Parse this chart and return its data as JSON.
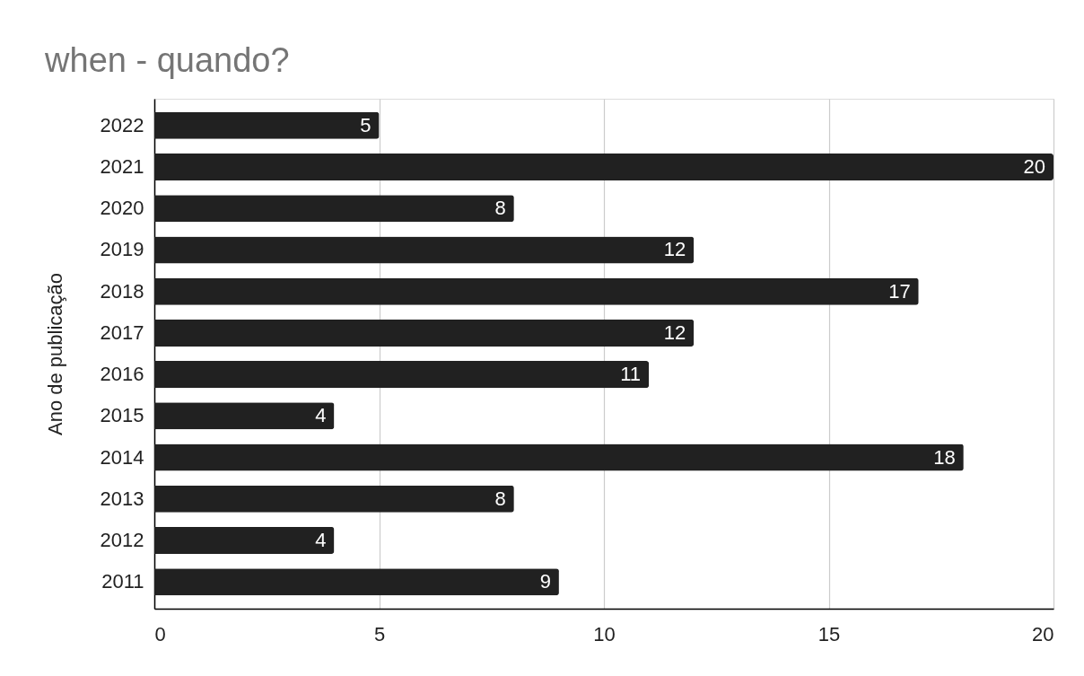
{
  "chart_data": {
    "type": "bar",
    "orientation": "horizontal",
    "title": "when - quando?",
    "ylabel": "Ano de publicação",
    "categories": [
      "2022",
      "2021",
      "2020",
      "2019",
      "2018",
      "2017",
      "2016",
      "2015",
      "2014",
      "2013",
      "2012",
      "2011"
    ],
    "values": [
      5,
      20,
      8,
      12,
      17,
      12,
      11,
      4,
      18,
      8,
      4,
      9
    ],
    "color": "#212121",
    "xlim": [
      0,
      20
    ],
    "xticks": [
      0,
      5,
      10,
      15,
      20
    ],
    "grid": "x",
    "data_labels": true
  }
}
